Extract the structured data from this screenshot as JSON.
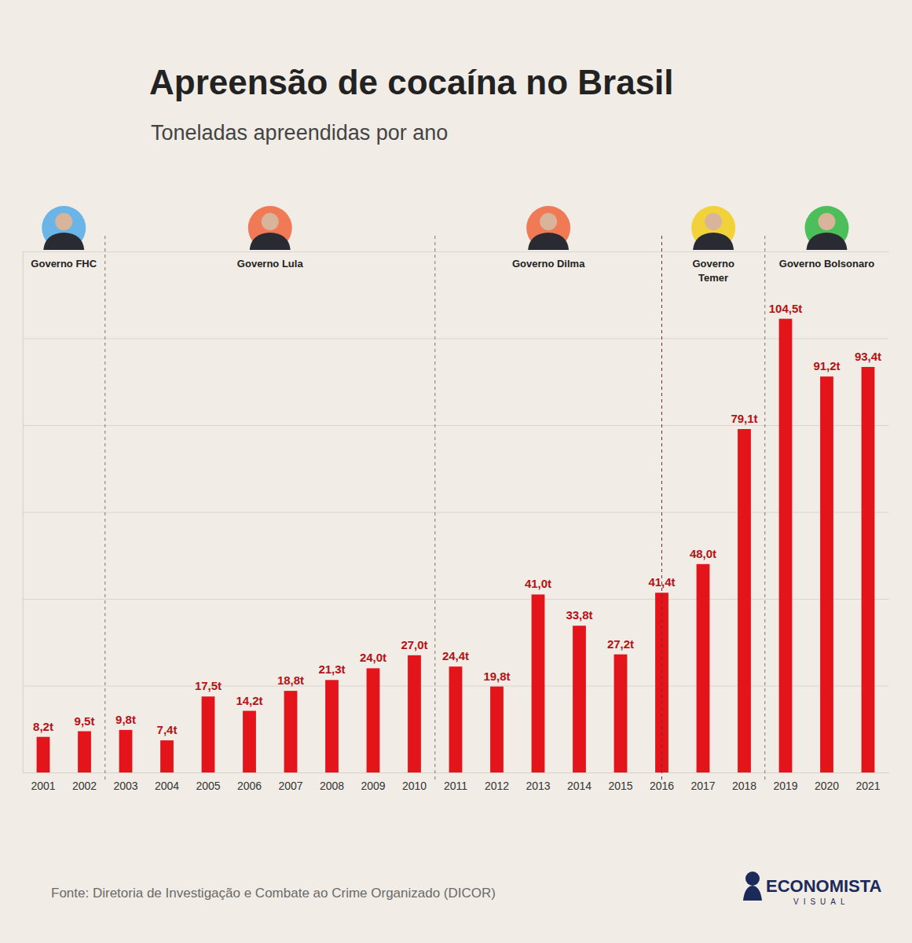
{
  "chart_data": {
    "type": "bar",
    "title": "Apreensão de cocaína no Brasil",
    "subtitle": "Toneladas apreendidas por ano",
    "categories": [
      "2001",
      "2002",
      "2003",
      "2004",
      "2005",
      "2006",
      "2007",
      "2008",
      "2009",
      "2010",
      "2011",
      "2012",
      "2013",
      "2014",
      "2015",
      "2016",
      "2017",
      "2018",
      "2019",
      "2020",
      "2021"
    ],
    "values": [
      8.2,
      9.5,
      9.8,
      7.4,
      17.5,
      14.2,
      18.8,
      21.3,
      24.0,
      27.0,
      24.4,
      19.8,
      41.0,
      33.8,
      27.2,
      41.4,
      48.0,
      79.1,
      104.5,
      91.2,
      93.4
    ],
    "value_labels": [
      "8,2t",
      "9,5t",
      "9,8t",
      "7,4t",
      "17,5t",
      "14,2t",
      "18,8t",
      "21,3t",
      "24,0t",
      "27,0t",
      "24,4t",
      "19,8t",
      "41,0t",
      "33,8t",
      "27,2t",
      "41,4t",
      "48,0t",
      "79,1t",
      "104,5t",
      "91,2t",
      "93,4t"
    ],
    "color": "#e3151a",
    "ylim": [
      0,
      120
    ],
    "yticks": [
      0,
      20,
      40,
      60,
      80,
      100,
      120
    ],
    "grid": true,
    "data_labels": true,
    "tick_labels": "x",
    "annotations": [
      {
        "text": "Governo FHC",
        "from": "2001",
        "to": "2002"
      },
      {
        "text": "Governo Lula",
        "from": "2003",
        "to": "2010"
      },
      {
        "text": "Governo Dilma",
        "from": "2011",
        "to": "2016"
      },
      {
        "text": "Governo Temer",
        "from": "2016",
        "to": "2018"
      },
      {
        "text": "Governo Bolsonaro",
        "from": "2019",
        "to": "2021"
      }
    ],
    "source": "Fonte: Diretoria de Investigação e Combate ao Crime Organizado (DICOR)",
    "credit": [
      "ECONOMISTA",
      "VISUAL"
    ]
  }
}
